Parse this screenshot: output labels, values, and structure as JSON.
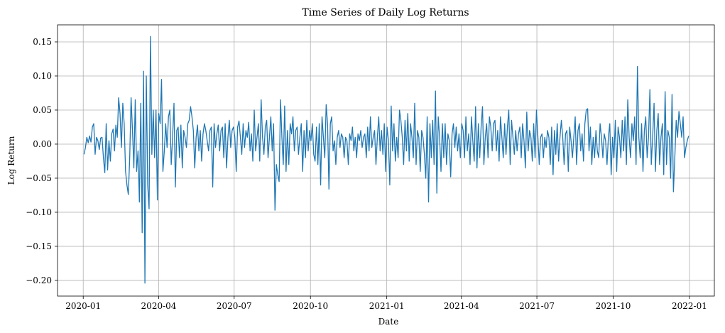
{
  "chart_data": {
    "type": "line",
    "title": "Time Series of Daily Log Returns",
    "xlabel": "Date",
    "ylabel": "Log Return",
    "x_start": "2020-01-02",
    "x_end": "2021-12-31",
    "xlim": [
      "2019-12-01",
      "2022-01-31"
    ],
    "ylim": [
      -0.223,
      0.175
    ],
    "xticks": [
      "2020-01",
      "2020-04",
      "2020-07",
      "2020-10",
      "2021-01",
      "2021-04",
      "2021-07",
      "2021-10",
      "2022-01"
    ],
    "yticks": [
      -0.2,
      -0.15,
      -0.1,
      -0.05,
      0.0,
      0.05,
      0.1,
      0.15
    ],
    "ytick_labels": [
      "−0.20",
      "−0.15",
      "−0.10",
      "−0.05",
      "0.00",
      "0.05",
      "0.10",
      "0.15"
    ],
    "grid": true,
    "line_color": "#1f77b4",
    "series": [
      {
        "values": [
          -0.015,
          -0.005,
          0.01,
          0.002,
          0.012,
          0.003,
          0.025,
          0.03,
          -0.015,
          0.01,
          0.005,
          -0.008,
          0.009,
          0.01,
          -0.02,
          -0.042,
          0.03,
          -0.038,
          0.005,
          -0.025,
          0.015,
          0.022,
          -0.01,
          0.028,
          0.01,
          0.068,
          0.045,
          -0.005,
          0.06,
          0.03,
          -0.04,
          -0.06,
          -0.074,
          -0.02,
          0.068,
          0.02,
          -0.035,
          0.065,
          -0.04,
          -0.01,
          -0.085,
          0.06,
          -0.13,
          0.107,
          -0.204,
          0.1,
          -0.06,
          -0.095,
          0.158,
          -0.015,
          0.05,
          -0.02,
          0.05,
          -0.082,
          0.045,
          0.03,
          0.095,
          -0.04,
          -0.01,
          0.03,
          -0.005,
          0.04,
          0.05,
          -0.03,
          0.01,
          0.06,
          -0.063,
          0.02,
          0.025,
          -0.02,
          0.028,
          -0.035,
          0.02,
          0.01,
          -0.005,
          0.03,
          0.035,
          0.055,
          0.04,
          0.02,
          -0.035,
          0.01,
          0.028,
          -0.01,
          0.02,
          -0.025,
          0.015,
          0.03,
          0.02,
          0.005,
          -0.01,
          0.02,
          0.025,
          -0.063,
          0.03,
          -0.005,
          0.015,
          0.028,
          -0.01,
          0.02,
          0.025,
          -0.02,
          0.03,
          -0.035,
          0.01,
          0.035,
          -0.005,
          0.02,
          0.025,
          0.01,
          -0.04,
          0.025,
          0.034,
          0.01,
          -0.015,
          0.03,
          -0.005,
          0.02,
          0.01,
          0.032,
          -0.01,
          0.015,
          -0.025,
          0.05,
          -0.01,
          0.01,
          0.03,
          -0.025,
          0.065,
          0.01,
          -0.015,
          0.025,
          0.035,
          -0.02,
          0.01,
          0.04,
          -0.01,
          0.03,
          -0.097,
          -0.03,
          -0.045,
          -0.055,
          0.065,
          0.01,
          -0.03,
          0.056,
          -0.04,
          0.02,
          -0.03,
          0.03,
          0.015,
          0.04,
          -0.01,
          0.02,
          0.025,
          -0.015,
          0.01,
          0.03,
          -0.04,
          0.02,
          -0.02,
          0.035,
          -0.01,
          0.02,
          0.005,
          0.03,
          -0.015,
          -0.025,
          0.025,
          -0.03,
          0.03,
          -0.06,
          0.04,
          0.01,
          -0.02,
          0.058,
          0.03,
          -0.066,
          0.03,
          0.04,
          -0.01,
          0.005,
          -0.03,
          0.01,
          0.02,
          -0.005,
          0.015,
          0.01,
          -0.02,
          0.01,
          0.005,
          -0.03,
          0.015,
          0.005,
          0.025,
          -0.01,
          0.01,
          -0.02,
          0.015,
          0.005,
          0.02,
          -0.005,
          0.01,
          0.015,
          -0.02,
          0.025,
          -0.01,
          0.04,
          -0.005,
          0.01,
          0.02,
          -0.03,
          0.01,
          0.04,
          -0.01,
          0.02,
          -0.015,
          0.03,
          -0.04,
          0.025,
          0.005,
          -0.06,
          0.056,
          -0.01,
          0.03,
          -0.025,
          0.01,
          -0.02,
          0.05,
          0.035,
          0.01,
          -0.03,
          0.035,
          -0.01,
          0.045,
          -0.025,
          0.03,
          0.01,
          -0.02,
          0.06,
          -0.03,
          0.02,
          0.01,
          -0.04,
          0.02,
          0.01,
          -0.015,
          -0.05,
          0.04,
          -0.085,
          0.03,
          -0.02,
          0.035,
          -0.03,
          0.078,
          -0.072,
          0.04,
          0.01,
          -0.04,
          0.03,
          -0.02,
          0.03,
          -0.03,
          0.015,
          0.005,
          -0.048,
          0.015,
          0.03,
          -0.005,
          0.025,
          -0.01,
          0.015,
          -0.02,
          0.03,
          0.02,
          -0.02,
          0.04,
          -0.01,
          0.015,
          -0.03,
          0.04,
          0.005,
          -0.025,
          0.055,
          -0.035,
          0.03,
          -0.02,
          0.025,
          0.055,
          -0.03,
          0.01,
          0.03,
          -0.02,
          0.04,
          0.025,
          -0.01,
          0.03,
          0.035,
          -0.01,
          0.02,
          -0.025,
          0.04,
          0.01,
          -0.02,
          0.03,
          -0.015,
          0.025,
          0.05,
          -0.03,
          0.035,
          0.01,
          -0.015,
          0.02,
          -0.01,
          0.015,
          0.025,
          -0.02,
          0.03,
          0.005,
          -0.035,
          0.047,
          -0.01,
          0.02,
          0.01,
          -0.025,
          0.03,
          -0.02,
          0.05,
          0.012,
          -0.03,
          0.01,
          0.015,
          -0.02,
          0.01,
          -0.005,
          0.02,
          0.01,
          -0.03,
          0.025,
          -0.045,
          0.02,
          -0.015,
          0.03,
          -0.025,
          0.01,
          0.035,
          0.01,
          -0.03,
          0.015,
          0.02,
          -0.04,
          0.025,
          0.005,
          -0.02,
          0.01,
          0.04,
          -0.03,
          0.02,
          0.03,
          -0.01,
          0.015,
          -0.025,
          0.03,
          0.05,
          0.052,
          -0.01,
          0.025,
          -0.03,
          0.01,
          -0.02,
          0.02,
          -0.01,
          -0.02,
          0.03,
          0.01,
          -0.02,
          0.015,
          0.005,
          -0.03,
          0.01,
          0.03,
          -0.045,
          0.01,
          -0.02,
          0.035,
          -0.04,
          0.025,
          0.01,
          -0.02,
          0.035,
          -0.01,
          0.04,
          -0.03,
          0.065,
          0.01,
          -0.02,
          0.03,
          0.005,
          0.04,
          -0.03,
          0.114,
          0.01,
          -0.02,
          0.03,
          -0.04,
          0.02,
          0.04,
          -0.02,
          0.01,
          0.08,
          -0.03,
          0.01,
          0.06,
          -0.04,
          0.02,
          0.045,
          -0.03,
          0.01,
          0.03,
          -0.045,
          0.077,
          -0.03,
          0.02,
          0.01,
          -0.05,
          0.073,
          -0.07,
          -0.02,
          0.035,
          0.01,
          0.048,
          0.03,
          0.01,
          0.04,
          -0.02,
          -0.005,
          0.005,
          0.012
        ]
      }
    ]
  }
}
